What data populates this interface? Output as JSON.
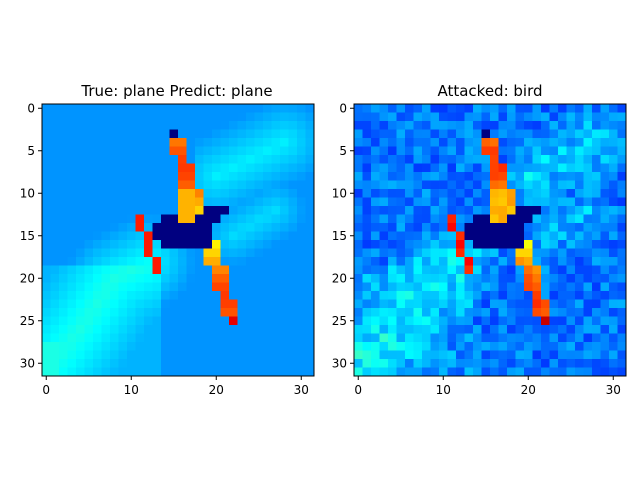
{
  "chart_data": [
    {
      "type": "heatmap",
      "title": "True: plane  Predict: plane",
      "xlabel": "",
      "ylabel": "",
      "xlim": [
        -0.5,
        31.5
      ],
      "ylim": [
        31.5,
        -0.5
      ],
      "xticks": [
        0,
        10,
        20,
        30
      ],
      "yticks": [
        0,
        5,
        10,
        15,
        20,
        25,
        30
      ],
      "image_size": [
        32,
        32
      ],
      "grid": false,
      "perturbation": 0
    },
    {
      "type": "heatmap",
      "title": "Attacked: bird",
      "xlabel": "",
      "ylabel": "",
      "xlim": [
        -0.5,
        31.5
      ],
      "ylim": [
        31.5,
        -0.5
      ],
      "xticks": [
        0,
        10,
        20,
        30
      ],
      "yticks": [
        0,
        5,
        10,
        15,
        20,
        25,
        30
      ],
      "image_size": [
        32,
        32
      ],
      "grid": false,
      "perturbation": 1
    }
  ]
}
